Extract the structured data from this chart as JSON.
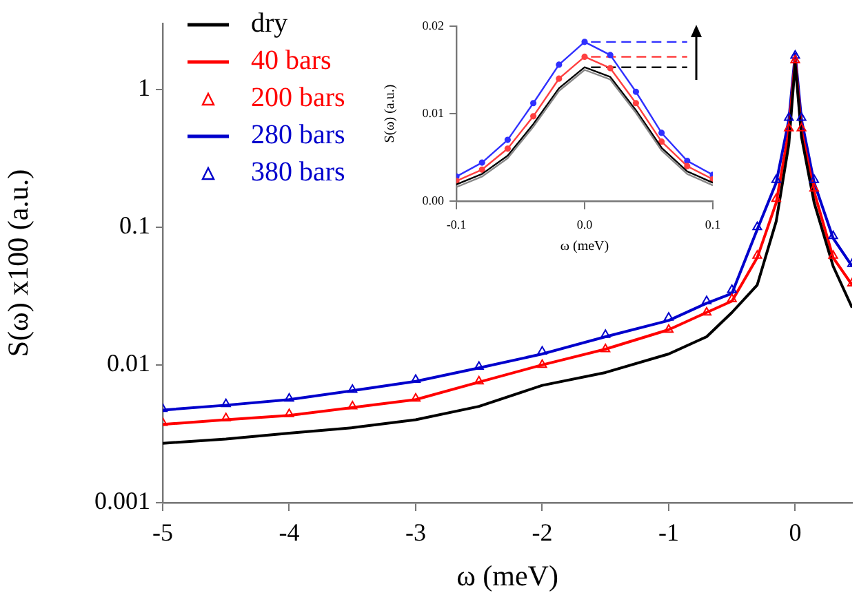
{
  "chart_data": [
    {
      "type": "line",
      "xlabel": "ω (meV)",
      "ylabel": "S(ω) x100 (a.u.)",
      "log": "y",
      "legend": "top left",
      "xlim": [
        -5,
        0.45
      ],
      "xticks": [
        -5,
        -4,
        -3,
        -2,
        -1,
        0
      ],
      "ylim": [
        0.001,
        3
      ],
      "yticks": [
        0.001,
        0.01,
        0.1,
        1
      ],
      "series": [
        {
          "name": "dry",
          "color": "#000000",
          "marker": "none",
          "x": [
            -5,
            -4.5,
            -4,
            -3.5,
            -3,
            -2.5,
            -2,
            -1.5,
            -1,
            -0.7,
            -0.5,
            -0.3,
            -0.15,
            -0.05,
            0,
            0.05,
            0.15,
            0.3,
            0.45
          ],
          "values": [
            0.0027,
            0.0029,
            0.0032,
            0.0035,
            0.004,
            0.005,
            0.0071,
            0.0088,
            0.012,
            0.016,
            0.024,
            0.038,
            0.11,
            0.4,
            1.55,
            0.45,
            0.15,
            0.052,
            0.026
          ]
        },
        {
          "name": "40 bars",
          "color": "#ff0000",
          "marker": "none",
          "x": [
            -5,
            -4.5,
            -4,
            -3.5,
            -3,
            -2.5,
            -2,
            -1.5,
            -1,
            -0.7,
            -0.5,
            -0.3,
            -0.15,
            -0.05,
            0,
            0.05,
            0.15,
            0.3,
            0.45
          ],
          "values": [
            0.0037,
            0.004,
            0.0043,
            0.0049,
            0.0056,
            0.0075,
            0.01,
            0.013,
            0.018,
            0.024,
            0.029,
            0.06,
            0.15,
            0.5,
            1.65,
            0.5,
            0.18,
            0.06,
            0.038
          ]
        },
        {
          "name": "200 bars",
          "type": "scatter",
          "color": "#ff0000",
          "marker": "triangle",
          "x": [
            -5,
            -4.5,
            -4,
            -3.5,
            -3,
            -2.5,
            -2,
            -1.5,
            -1,
            -0.7,
            -0.5,
            -0.3,
            -0.15,
            -0.05,
            0,
            0.05,
            0.15,
            0.3,
            0.45
          ],
          "values": [
            0.0038,
            0.0041,
            0.0044,
            0.005,
            0.0057,
            0.0076,
            0.01,
            0.013,
            0.018,
            0.024,
            0.03,
            0.062,
            0.16,
            0.52,
            1.62,
            0.52,
            0.19,
            0.062,
            0.039
          ]
        },
        {
          "name": "280 bars",
          "color": "#0000cc",
          "marker": "none",
          "x": [
            -5,
            -4.5,
            -4,
            -3.5,
            -3,
            -2.5,
            -2,
            -1.5,
            -1,
            -0.7,
            -0.5,
            -0.3,
            -0.15,
            -0.05,
            0,
            0.05,
            0.15,
            0.3,
            0.45
          ],
          "values": [
            0.0047,
            0.0051,
            0.0056,
            0.0065,
            0.0076,
            0.0095,
            0.012,
            0.016,
            0.021,
            0.028,
            0.033,
            0.096,
            0.21,
            0.6,
            1.8,
            0.6,
            0.21,
            0.083,
            0.052
          ]
        },
        {
          "name": "380 bars",
          "type": "scatter",
          "color": "#0000cc",
          "marker": "triangle",
          "x": [
            -5,
            -4.5,
            -4,
            -3.5,
            -3,
            -2.5,
            -2,
            -1.5,
            -1,
            -0.7,
            -0.5,
            -0.3,
            -0.15,
            -0.05,
            0,
            0.05,
            0.15,
            0.3,
            0.45
          ],
          "values": [
            0.0048,
            0.0052,
            0.0057,
            0.0066,
            0.0078,
            0.0097,
            0.0125,
            0.0165,
            0.022,
            0.029,
            0.035,
            0.1,
            0.22,
            0.62,
            1.75,
            0.62,
            0.22,
            0.086,
            0.054
          ]
        }
      ]
    },
    {
      "type": "line",
      "xlabel": "ω (meV)",
      "ylabel": "S(ω) (a.u.)",
      "xlim": [
        -0.1,
        0.1
      ],
      "xticks": [
        -0.1,
        {
          "value": 0,
          "label": "0.0"
        },
        0.1
      ],
      "ylim": [
        0,
        0.02
      ],
      "yticks": [
        {
          "value": 0,
          "label": "0.00"
        },
        0.01,
        0.02
      ],
      "series": [
        {
          "color": "#888888",
          "marker": "none",
          "x": [
            -0.1,
            -0.08,
            -0.06,
            -0.04,
            -0.02,
            0,
            0.02,
            0.04,
            0.06,
            0.08,
            0.1
          ],
          "values": [
            0.0016,
            0.0028,
            0.0049,
            0.0085,
            0.0126,
            0.015,
            0.0139,
            0.0101,
            0.0058,
            0.0031,
            0.0018
          ]
        },
        {
          "color": "#000000",
          "marker": "none",
          "x": [
            -0.1,
            -0.08,
            -0.06,
            -0.04,
            -0.02,
            0,
            0.02,
            0.04,
            0.06,
            0.08,
            0.1
          ],
          "values": [
            0.0019,
            0.0031,
            0.0052,
            0.0088,
            0.0129,
            0.0153,
            0.0142,
            0.0104,
            0.0061,
            0.0034,
            0.0021
          ]
        },
        {
          "color": "#ff4040",
          "marker": "circle",
          "x": [
            -0.1,
            -0.08,
            -0.06,
            -0.04,
            -0.02,
            0,
            0.02,
            0.04,
            0.06,
            0.08,
            0.1
          ],
          "values": [
            0.0023,
            0.0036,
            0.006,
            0.0097,
            0.014,
            0.0165,
            0.0152,
            0.0112,
            0.0068,
            0.004,
            0.0025
          ]
        },
        {
          "color": "#3030ff",
          "marker": "circle",
          "x": [
            -0.1,
            -0.08,
            -0.06,
            -0.04,
            -0.02,
            0,
            0.02,
            0.04,
            0.06,
            0.08,
            0.1
          ],
          "values": [
            0.0028,
            0.0044,
            0.007,
            0.0112,
            0.0156,
            0.0182,
            0.0167,
            0.0125,
            0.0078,
            0.0046,
            0.003
          ]
        },
        {
          "color": "#000000",
          "marker": "none",
          "line_style": "dashed",
          "x": [
            0.005,
            0.08
          ],
          "values": [
            0.0153,
            0.0153
          ]
        },
        {
          "color": "#ff4040",
          "marker": "none",
          "line_style": "dashed",
          "x": [
            0.005,
            0.08
          ],
          "values": [
            0.0165,
            0.0165
          ]
        },
        {
          "color": "#3030ff",
          "marker": "none",
          "line_style": "dashed",
          "x": [
            0.005,
            0.08
          ],
          "values": [
            0.0182,
            0.0182
          ]
        }
      ]
    }
  ]
}
